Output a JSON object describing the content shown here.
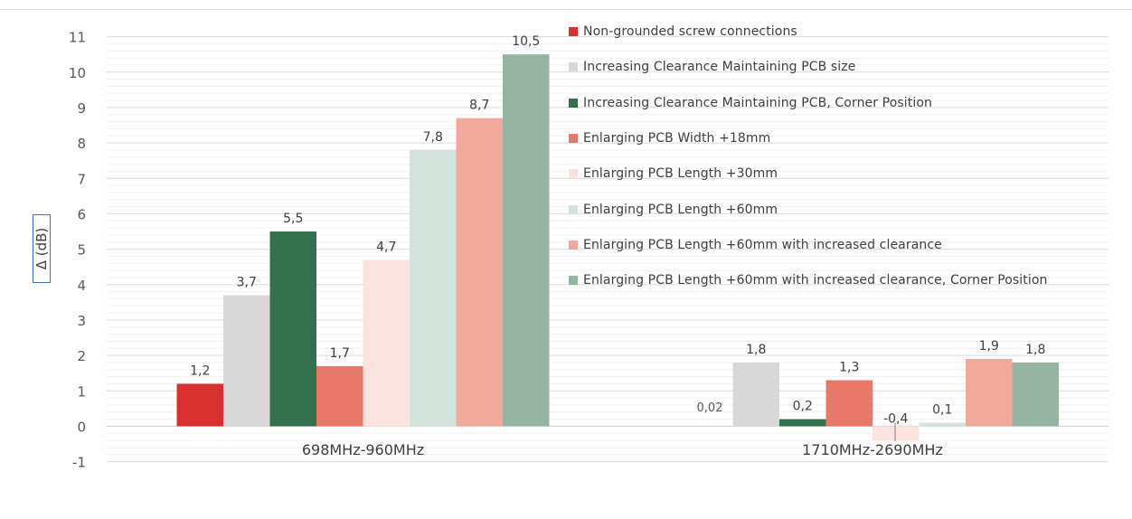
{
  "chart_data": {
    "type": "bar",
    "ylabel": "Δ (dB)",
    "xlabel": "",
    "ylim": [
      -1,
      11
    ],
    "yticks": [
      "-1",
      "0",
      "1",
      "2",
      "3",
      "4",
      "5",
      "6",
      "7",
      "8",
      "9",
      "10",
      "11"
    ],
    "grid": true,
    "legend_position": "right",
    "categories": [
      "698MHz-960MHz",
      "1710MHz-2690MHz"
    ],
    "series": [
      {
        "name": "Non-grounded screw connections",
        "color": "#d9312f",
        "values": [
          1.2,
          null
        ],
        "labels": [
          "1,2",
          ""
        ]
      },
      {
        "name": "Increasing Clearance Maintaining PCB size",
        "color": "#d8d8d8",
        "values": [
          3.7,
          1.8
        ],
        "labels": [
          "3,7",
          "1,8"
        ]
      },
      {
        "name": "Increasing Clearance Maintaining PCB, Corner Position",
        "color": "#33704d",
        "values": [
          5.5,
          0.2
        ],
        "labels": [
          "5,5",
          "0,2"
        ]
      },
      {
        "name": "Enlarging PCB Width +18mm",
        "color": "#e8786a",
        "values": [
          1.7,
          1.3
        ],
        "labels": [
          "1,7",
          "1,3"
        ]
      },
      {
        "name": "Enlarging PCB Length +30mm",
        "color": "#fbe3df",
        "values": [
          4.7,
          -0.4
        ],
        "labels": [
          "4,7",
          "-0,4"
        ]
      },
      {
        "name": "Enlarging PCB Length +60mm",
        "color": "#d4e2dc",
        "values": [
          7.8,
          0.1
        ],
        "labels": [
          "7,8",
          "0,1"
        ]
      },
      {
        "name": "Enlarging PCB Length +60mm with increased clearance",
        "color": "#f1a99b",
        "values": [
          8.7,
          1.9
        ],
        "labels": [
          "8,7",
          "1,9"
        ]
      },
      {
        "name": "Enlarging PCB Length +60mm with increased clearance, Corner Position",
        "color": "#96b4a2",
        "values": [
          10.5,
          1.8
        ],
        "labels": [
          "10,5",
          "1,8"
        ]
      }
    ],
    "annotations": [
      {
        "text": "0,02"
      }
    ]
  }
}
